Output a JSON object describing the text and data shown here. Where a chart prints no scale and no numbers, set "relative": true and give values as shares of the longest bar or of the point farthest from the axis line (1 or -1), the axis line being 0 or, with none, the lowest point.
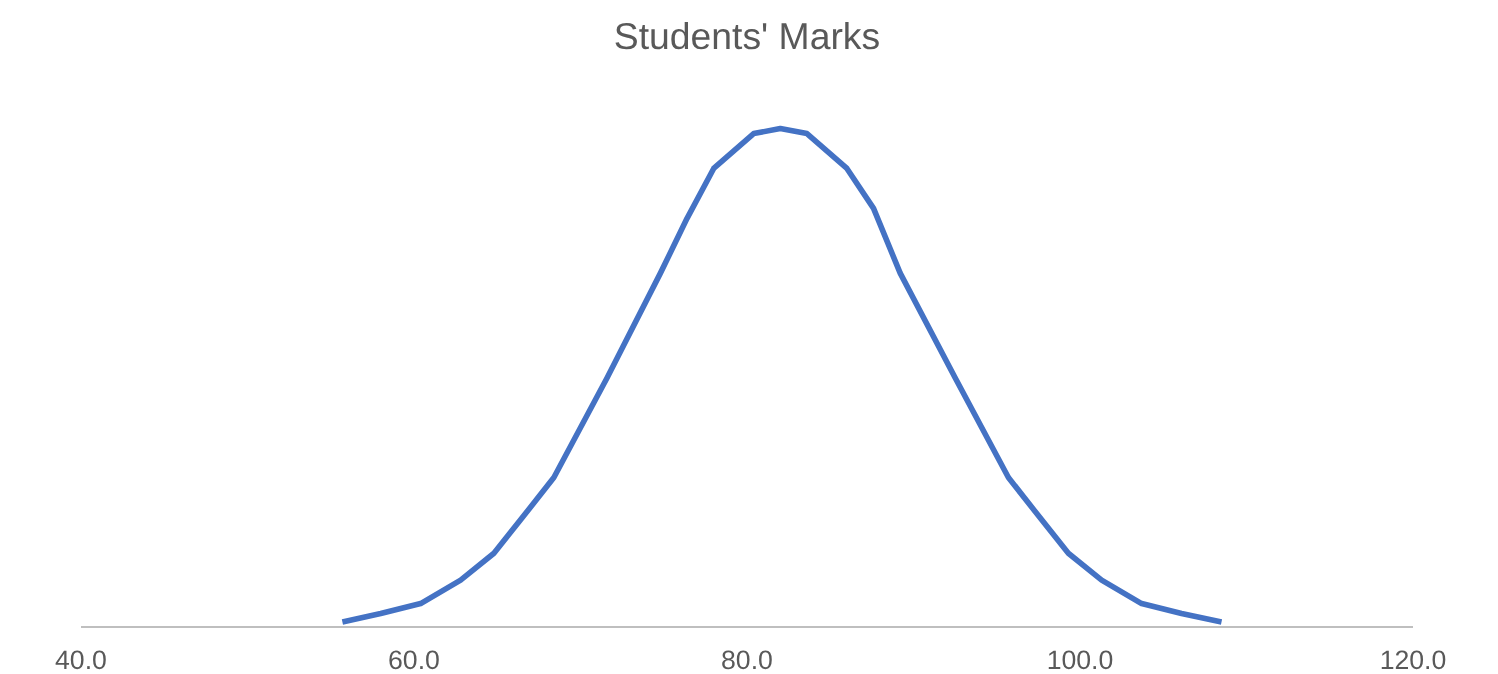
{
  "chart_data": {
    "type": "line",
    "title": "Students' Marks",
    "relative": true,
    "xlim": [
      40,
      120
    ],
    "xticks": [
      {
        "value": 40,
        "label": "40.0"
      },
      {
        "value": 60,
        "label": "60.0"
      },
      {
        "value": 80,
        "label": "80.0"
      },
      {
        "value": 100,
        "label": "100.0"
      },
      {
        "value": 120,
        "label": "120.0"
      }
    ],
    "x": [
      55.7,
      58.0,
      60.4,
      62.8,
      64.8,
      66.4,
      68.4,
      71.6,
      74.8,
      76.4,
      78.0,
      80.4,
      82.0,
      83.6,
      86.0,
      87.6,
      89.2,
      92.5,
      95.7,
      97.7,
      99.3,
      101.3,
      103.7,
      106.1,
      108.5
    ],
    "series": [
      {
        "color": "#4472c4",
        "values": [
          0.01,
          0.027,
          0.047,
          0.094,
          0.148,
          0.215,
          0.3,
          0.5,
          0.71,
          0.82,
          0.92,
          0.99,
          1.0,
          0.99,
          0.92,
          0.84,
          0.71,
          0.5,
          0.3,
          0.215,
          0.148,
          0.094,
          0.047,
          0.027,
          0.01
        ]
      }
    ],
    "grid": false,
    "marker": "none",
    "line_style": "solid"
  }
}
